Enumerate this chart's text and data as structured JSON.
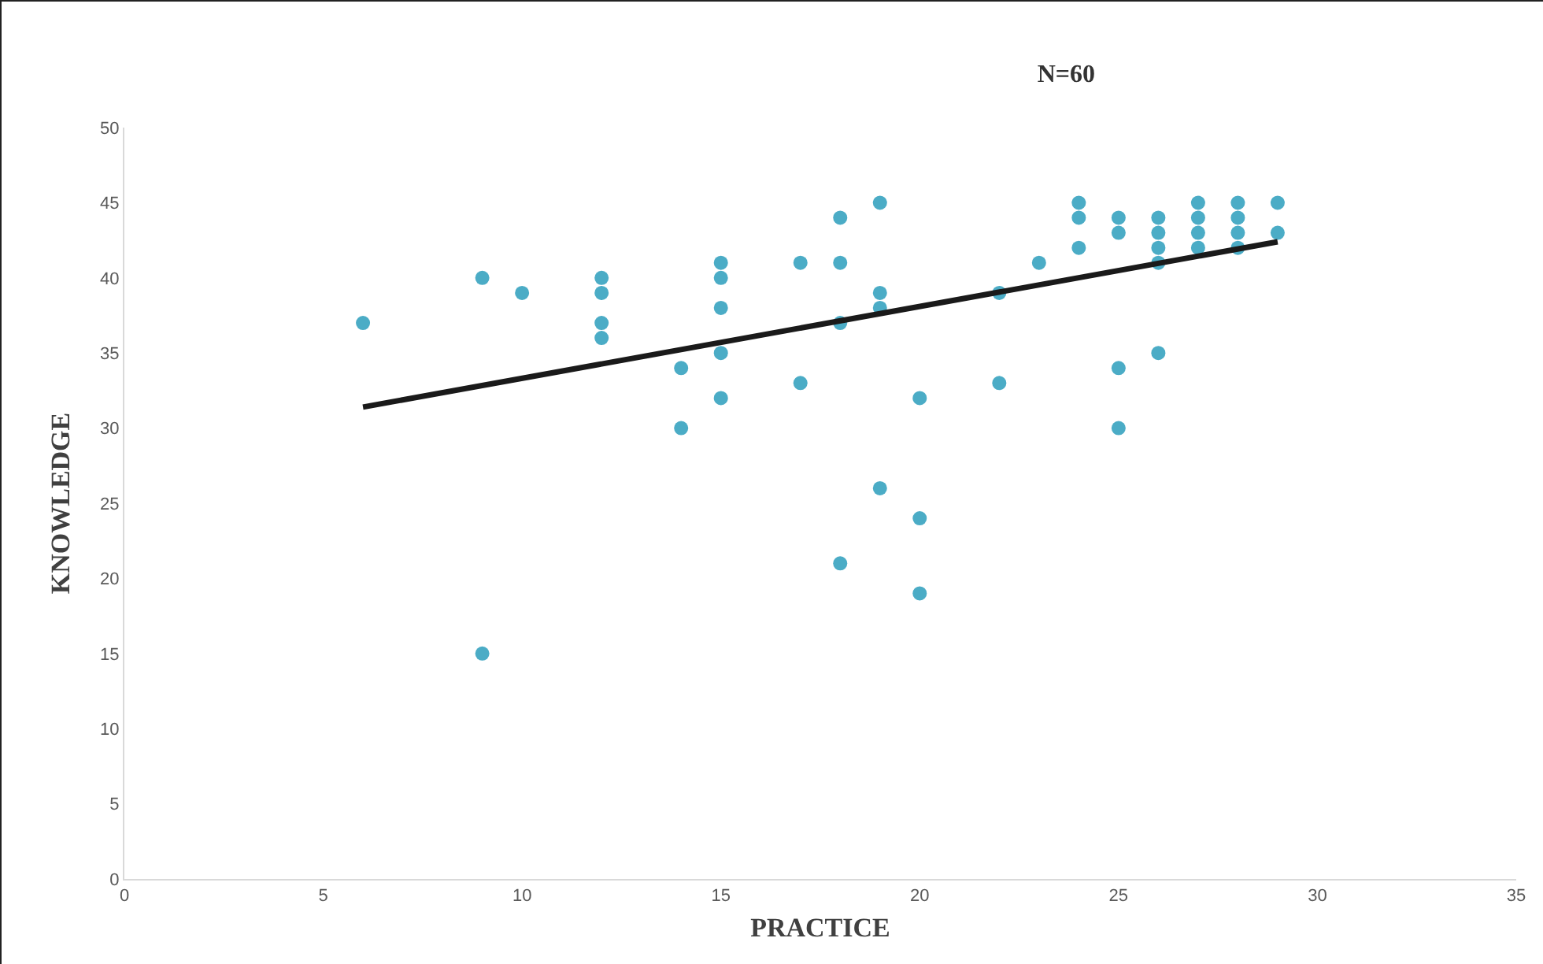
{
  "chart_data": {
    "type": "scatter",
    "title": "N=60",
    "xlabel": "PRACTICE",
    "ylabel": "KNOWLEDGE",
    "xlim": [
      0,
      35
    ],
    "xticks": [
      0,
      5,
      10,
      15,
      20,
      25,
      30,
      35
    ],
    "ylim": [
      0,
      50
    ],
    "yticks": [
      0,
      5,
      10,
      15,
      20,
      25,
      30,
      35,
      40,
      45,
      50
    ],
    "grid": false,
    "marker": "circle",
    "series": [
      {
        "color": "#4bacc6",
        "x": [
          6,
          9,
          9,
          10,
          12,
          12,
          12,
          12,
          14,
          14,
          15,
          15,
          15,
          15,
          15,
          17,
          17,
          18,
          18,
          18,
          18,
          19,
          19,
          19,
          19,
          20,
          20,
          20,
          22,
          22,
          23,
          24,
          24,
          24,
          25,
          25,
          25,
          25,
          26,
          26,
          26,
          26,
          26,
          27,
          27,
          27,
          27,
          28,
          28,
          28,
          28,
          29,
          29
        ],
        "values": [
          37,
          40,
          15,
          39,
          40,
          39,
          37,
          36,
          34,
          30,
          41,
          40,
          38,
          35,
          32,
          41,
          33,
          44,
          41,
          37,
          21,
          45,
          39,
          38,
          26,
          32,
          24,
          19,
          39,
          33,
          41,
          45,
          44,
          42,
          44,
          43,
          34,
          30,
          44,
          43,
          42,
          41,
          35,
          45,
          44,
          43,
          42,
          45,
          44,
          43,
          42,
          45,
          43
        ]
      },
      {
        "type": "line",
        "color": "#1a1a1a",
        "line_style": "solid",
        "marker": "none",
        "x": [
          6,
          29
        ],
        "values": [
          31.4,
          42.4
        ]
      }
    ]
  }
}
